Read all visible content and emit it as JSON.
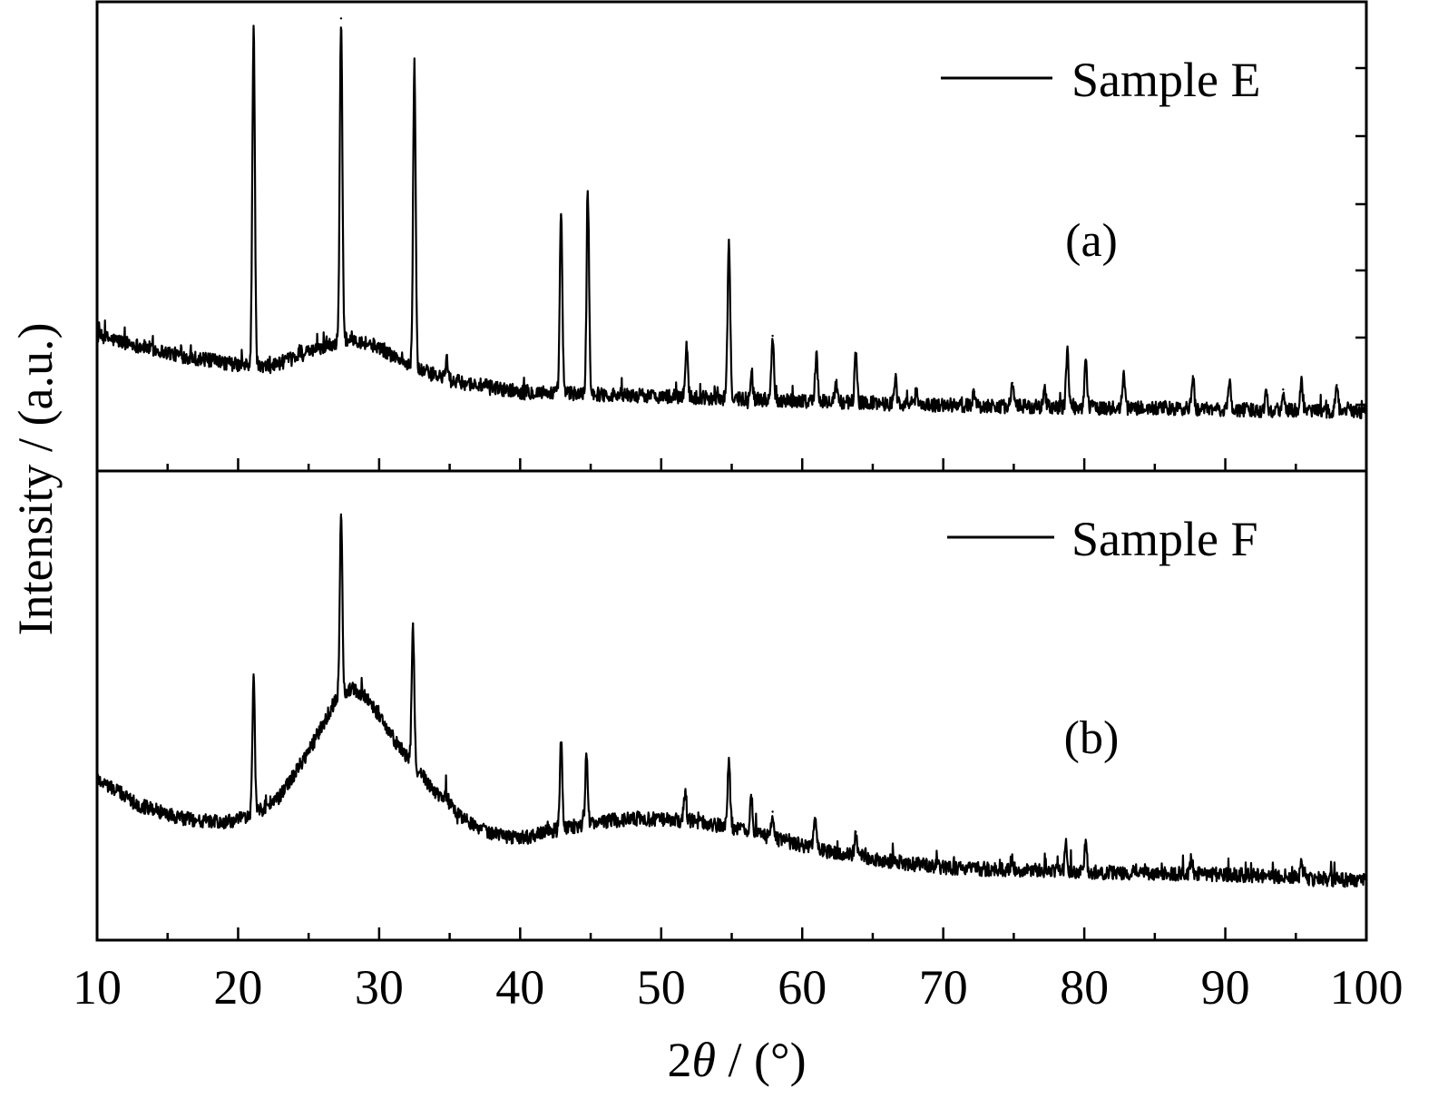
{
  "chart_data": [
    {
      "type": "line",
      "panel_label": "(a)",
      "series": [
        {
          "name": "Sample E",
          "baseline": [
            [
              10,
              58
            ],
            [
              16,
              49
            ],
            [
              20,
              45
            ],
            [
              22,
              44
            ],
            [
              24,
              48
            ],
            [
              26,
              53
            ],
            [
              28,
              57
            ],
            [
              30,
              53
            ],
            [
              32,
              45
            ],
            [
              35,
              38
            ],
            [
              40,
              33
            ],
            [
              50,
              31
            ],
            [
              60,
              29
            ],
            [
              70,
              27
            ],
            [
              80,
              26
            ],
            [
              90,
              25
            ],
            [
              100,
              24
            ]
          ],
          "peaks": [
            {
              "x": 21.1,
              "y": 195
            },
            {
              "x": 24.4,
              "y": 52
            },
            {
              "x": 27.3,
              "y": 200
            },
            {
              "x": 32.5,
              "y": 180
            },
            {
              "x": 34.8,
              "y": 47
            },
            {
              "x": 42.9,
              "y": 112
            },
            {
              "x": 44.8,
              "y": 121
            },
            {
              "x": 51.8,
              "y": 55
            },
            {
              "x": 54.8,
              "y": 101
            },
            {
              "x": 56.4,
              "y": 42
            },
            {
              "x": 57.9,
              "y": 58
            },
            {
              "x": 61.0,
              "y": 49
            },
            {
              "x": 62.4,
              "y": 36
            },
            {
              "x": 63.8,
              "y": 50
            },
            {
              "x": 66.6,
              "y": 39
            },
            {
              "x": 68.1,
              "y": 33
            },
            {
              "x": 72.2,
              "y": 33
            },
            {
              "x": 74.9,
              "y": 37
            },
            {
              "x": 77.2,
              "y": 33
            },
            {
              "x": 78.8,
              "y": 51
            },
            {
              "x": 80.1,
              "y": 47
            },
            {
              "x": 82.8,
              "y": 41
            },
            {
              "x": 87.7,
              "y": 40
            },
            {
              "x": 90.3,
              "y": 37
            },
            {
              "x": 92.9,
              "y": 33
            },
            {
              "x": 94.1,
              "y": 34
            },
            {
              "x": 95.4,
              "y": 39
            },
            {
              "x": 97.9,
              "y": 36
            }
          ]
        }
      ],
      "ylim": [
        0,
        205
      ]
    },
    {
      "type": "line",
      "panel_label": "(b)",
      "series": [
        {
          "name": "Sample F",
          "baseline": [
            [
              10,
              70
            ],
            [
              13,
              58
            ],
            [
              16,
              52
            ],
            [
              19,
              50
            ],
            [
              21,
              53
            ],
            [
              23,
              62
            ],
            [
              25,
              82
            ],
            [
              27,
              106
            ],
            [
              28,
              110
            ],
            [
              29,
              107
            ],
            [
              30,
              98
            ],
            [
              31,
              88
            ],
            [
              32,
              79
            ],
            [
              34,
              64
            ],
            [
              36,
              52
            ],
            [
              38,
              45
            ],
            [
              40,
              43
            ],
            [
              42,
              46
            ],
            [
              45,
              50
            ],
            [
              48,
              52
            ],
            [
              52,
              51
            ],
            [
              55,
              48
            ],
            [
              58,
              43
            ],
            [
              62,
              37
            ],
            [
              66,
              33
            ],
            [
              70,
              30
            ],
            [
              80,
              28
            ],
            [
              90,
              27
            ],
            [
              100,
              24
            ]
          ],
          "peaks": [
            {
              "x": 21.1,
              "y": 115
            },
            {
              "x": 27.3,
              "y": 188
            },
            {
              "x": 32.4,
              "y": 139
            },
            {
              "x": 34.8,
              "y": 63
            },
            {
              "x": 42.9,
              "y": 86
            },
            {
              "x": 44.7,
              "y": 80
            },
            {
              "x": 51.7,
              "y": 64
            },
            {
              "x": 54.8,
              "y": 77
            },
            {
              "x": 56.4,
              "y": 61
            },
            {
              "x": 57.9,
              "y": 55
            },
            {
              "x": 60.9,
              "y": 52
            },
            {
              "x": 63.8,
              "y": 46
            },
            {
              "x": 74.9,
              "y": 33
            },
            {
              "x": 78.7,
              "y": 40
            },
            {
              "x": 80.1,
              "y": 40
            },
            {
              "x": 87.6,
              "y": 34
            },
            {
              "x": 95.4,
              "y": 32
            }
          ]
        }
      ],
      "ylim": [
        0,
        205
      ]
    }
  ],
  "axes": {
    "xlabel_prefix": "2",
    "xlabel_symbol": "θ",
    "xlabel_suffix": " / (°)",
    "ylabel": "Intensity / (a.u.)",
    "xlim": [
      10,
      100
    ],
    "xticks_labeled": [
      "10",
      "20",
      "30",
      "40",
      "50",
      "60",
      "70",
      "80",
      "90",
      "100"
    ],
    "minor_tick_step": 5,
    "grid": false,
    "legend_placement": "top-right"
  },
  "style": {
    "line_color": "#000000",
    "frame_color": "#000000",
    "background": "#ffffff"
  }
}
